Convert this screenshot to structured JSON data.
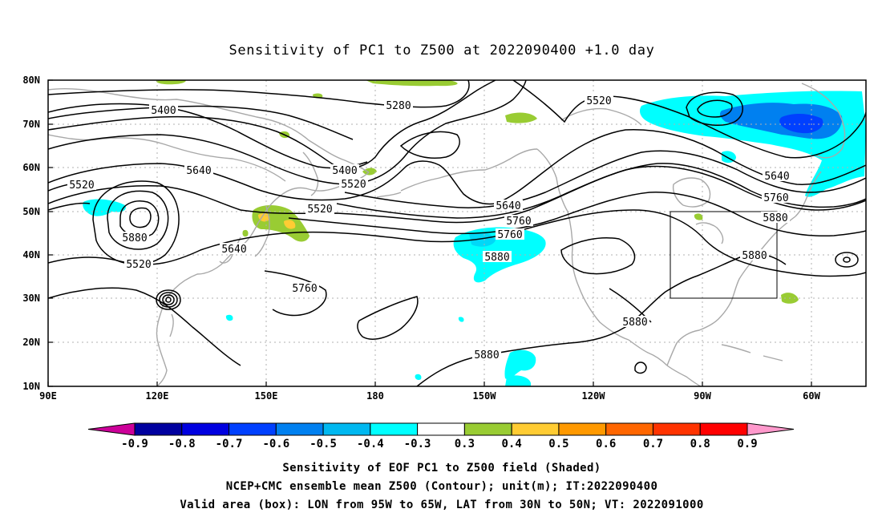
{
  "title": "Sensitivity of PC1 to Z500 at 2022090400 +1.0 day",
  "lat_labels": [
    "80N",
    "70N",
    "60N",
    "50N",
    "40N",
    "30N",
    "20N",
    "10N"
  ],
  "lon_labels": [
    "90E",
    "120E",
    "150E",
    "180",
    "150W",
    "120W",
    "90W",
    "60W"
  ],
  "contour_labels": [
    "5400",
    "5280",
    "5520",
    "5640",
    "5400",
    "5520",
    "5640",
    "5760",
    "5520",
    "5880",
    "5760",
    "5520",
    "5640",
    "5760",
    "5880",
    "5880",
    "5520",
    "5640",
    "5760",
    "5880",
    "5880",
    "5880"
  ],
  "colorbar": {
    "labels": [
      "-0.9",
      "-0.8",
      "-0.7",
      "-0.6",
      "-0.5",
      "-0.4",
      "-0.3",
      "0.3",
      "0.4",
      "0.5",
      "0.6",
      "0.7",
      "0.8",
      "0.9"
    ],
    "colors": [
      "#cc0099",
      "#00009f",
      "#0000e0",
      "#0040ff",
      "#0080f0",
      "#00b8f0",
      "#00ffff",
      "#ffffff",
      "#99cc33",
      "#ffcc33",
      "#ff9900",
      "#ff6600",
      "#ff3300",
      "#ff0000",
      "#ff99cc"
    ]
  },
  "shading_colors": {
    "neg_strong": "#0040ff",
    "neg_med": "#0080f0",
    "neg_weak": "#00ffff",
    "neg_cyan2": "#00d8f8",
    "pos_green": "#99cc33",
    "pos_yellow": "#ffcc33"
  },
  "valid_box": {
    "lon_w": -95,
    "lon_e": -65,
    "lat_s": 30,
    "lat_n": 50
  },
  "captions": [
    "Sensitivity of EOF PC1 to Z500 field (Shaded)",
    "NCEP+CMC ensemble mean Z500 (Contour); unit(m); IT:2022090400",
    "Valid area (box): LON from 95W to 65W, LAT from 30N to 50N; VT: 2022091000"
  ]
}
